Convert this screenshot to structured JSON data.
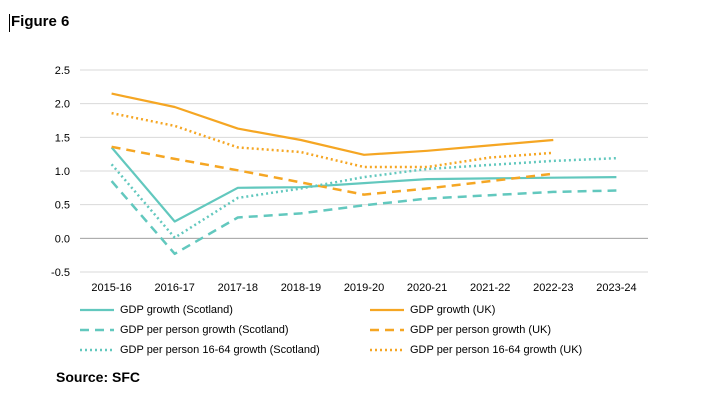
{
  "figure_label": "Figure 6",
  "source": "Source: SFC",
  "colors": {
    "scotland": "#62c8be",
    "uk": "#f5a623",
    "axis": "#a6a6a6",
    "grid": "#d9d9d9"
  },
  "chart_data": {
    "type": "line",
    "categories": [
      "2015-16",
      "2016-17",
      "2017-18",
      "2018-19",
      "2019-20",
      "2020-21",
      "2021-22",
      "2022-23",
      "2023-24"
    ],
    "ylim": [
      -0.5,
      2.5
    ],
    "yticks": [
      "2.5",
      "2.0",
      "1.5",
      "1.0",
      "0.5",
      "0.0",
      "-0.5"
    ],
    "grid": true,
    "legend_placement": "bottom",
    "series": [
      {
        "name": "GDP growth (Scotland)",
        "color": "#62c8be",
        "style": "solid",
        "values": [
          1.35,
          0.25,
          0.75,
          0.76,
          0.82,
          0.88,
          0.89,
          0.9,
          0.91
        ]
      },
      {
        "name": "GDP growth (UK)",
        "color": "#f5a623",
        "style": "solid",
        "values": [
          2.15,
          1.95,
          1.63,
          1.46,
          1.24,
          1.3,
          1.38,
          1.46,
          null
        ]
      },
      {
        "name": "GDP per person growth (Scotland)",
        "color": "#62c8be",
        "style": "dashed",
        "values": [
          0.85,
          -0.23,
          0.31,
          0.37,
          0.49,
          0.59,
          0.64,
          0.69,
          0.71
        ]
      },
      {
        "name": "GDP per person growth (UK)",
        "color": "#f5a623",
        "style": "dashed",
        "values": [
          1.36,
          1.18,
          1.01,
          0.83,
          0.65,
          0.74,
          0.85,
          0.96,
          null
        ]
      },
      {
        "name": "GDP per person 16-64 growth (Scotland)",
        "color": "#62c8be",
        "style": "dotted",
        "values": [
          1.1,
          0.01,
          0.6,
          0.74,
          0.91,
          1.03,
          1.09,
          1.15,
          1.19
        ]
      },
      {
        "name": "GDP per person 16-64 growth (UK)",
        "color": "#f5a623",
        "style": "dotted",
        "values": [
          1.86,
          1.67,
          1.35,
          1.28,
          1.06,
          1.06,
          1.2,
          1.27,
          null
        ]
      }
    ]
  }
}
